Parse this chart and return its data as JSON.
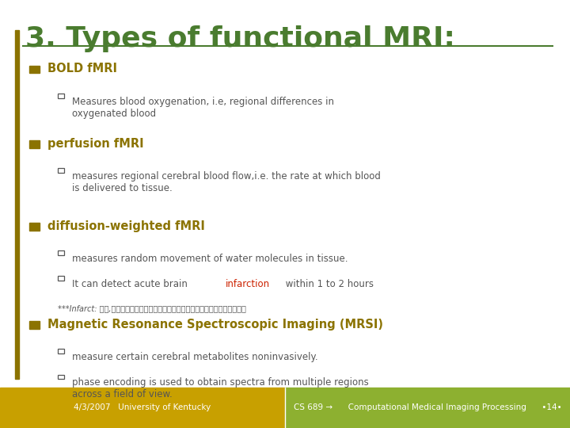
{
  "title": "3. Types of functional MRI:",
  "title_color": "#4a7c2f",
  "title_fontsize": 26,
  "bg_color": "#ffffff",
  "bullet_color": "#8b7300",
  "sub_bullet_color": "#555555",
  "infarction_color": "#cc2200",
  "footer_left_bg": "#c8a000",
  "footer_right_bg": "#8db030",
  "footer_left_text": "4/3/2007   University of Kentucky",
  "footer_right_text": "CS 689 →      Computational Medical Imaging Processing      •14•",
  "footer_text_color": "#ffffff",
  "left_bar_color": "#8b7300",
  "items": [
    {
      "bullet": "BOLD fMRI",
      "sub": [
        "Measures blood oxygenation, i.e, regional differences in\noxygenated blood"
      ]
    },
    {
      "bullet": "perfusion fMRI",
      "sub": [
        "measures regional cerebral blood flow,i.e. the rate at which blood\nis delivered to tissue."
      ]
    },
    {
      "bullet": "diffusion-weighted fMRI",
      "sub": [
        "measures random movement of water molecules in tissue.",
        "It can detect acute brain {infarction} within 1 to 2 hours",
        "***Infarct: 棕塞,如由于血栓或栓子的原因；局部血液供应不畅而引发局部组织坏死"
      ]
    },
    {
      "bullet": "Magnetic Resonance Spectroscopic Imaging (MRSI)",
      "sub": [
        "measure certain cerebral metabolites noninvasively.",
        "phase encoding is used to obtain spectra from multiple regions\nacross a field of view."
      ]
    }
  ]
}
